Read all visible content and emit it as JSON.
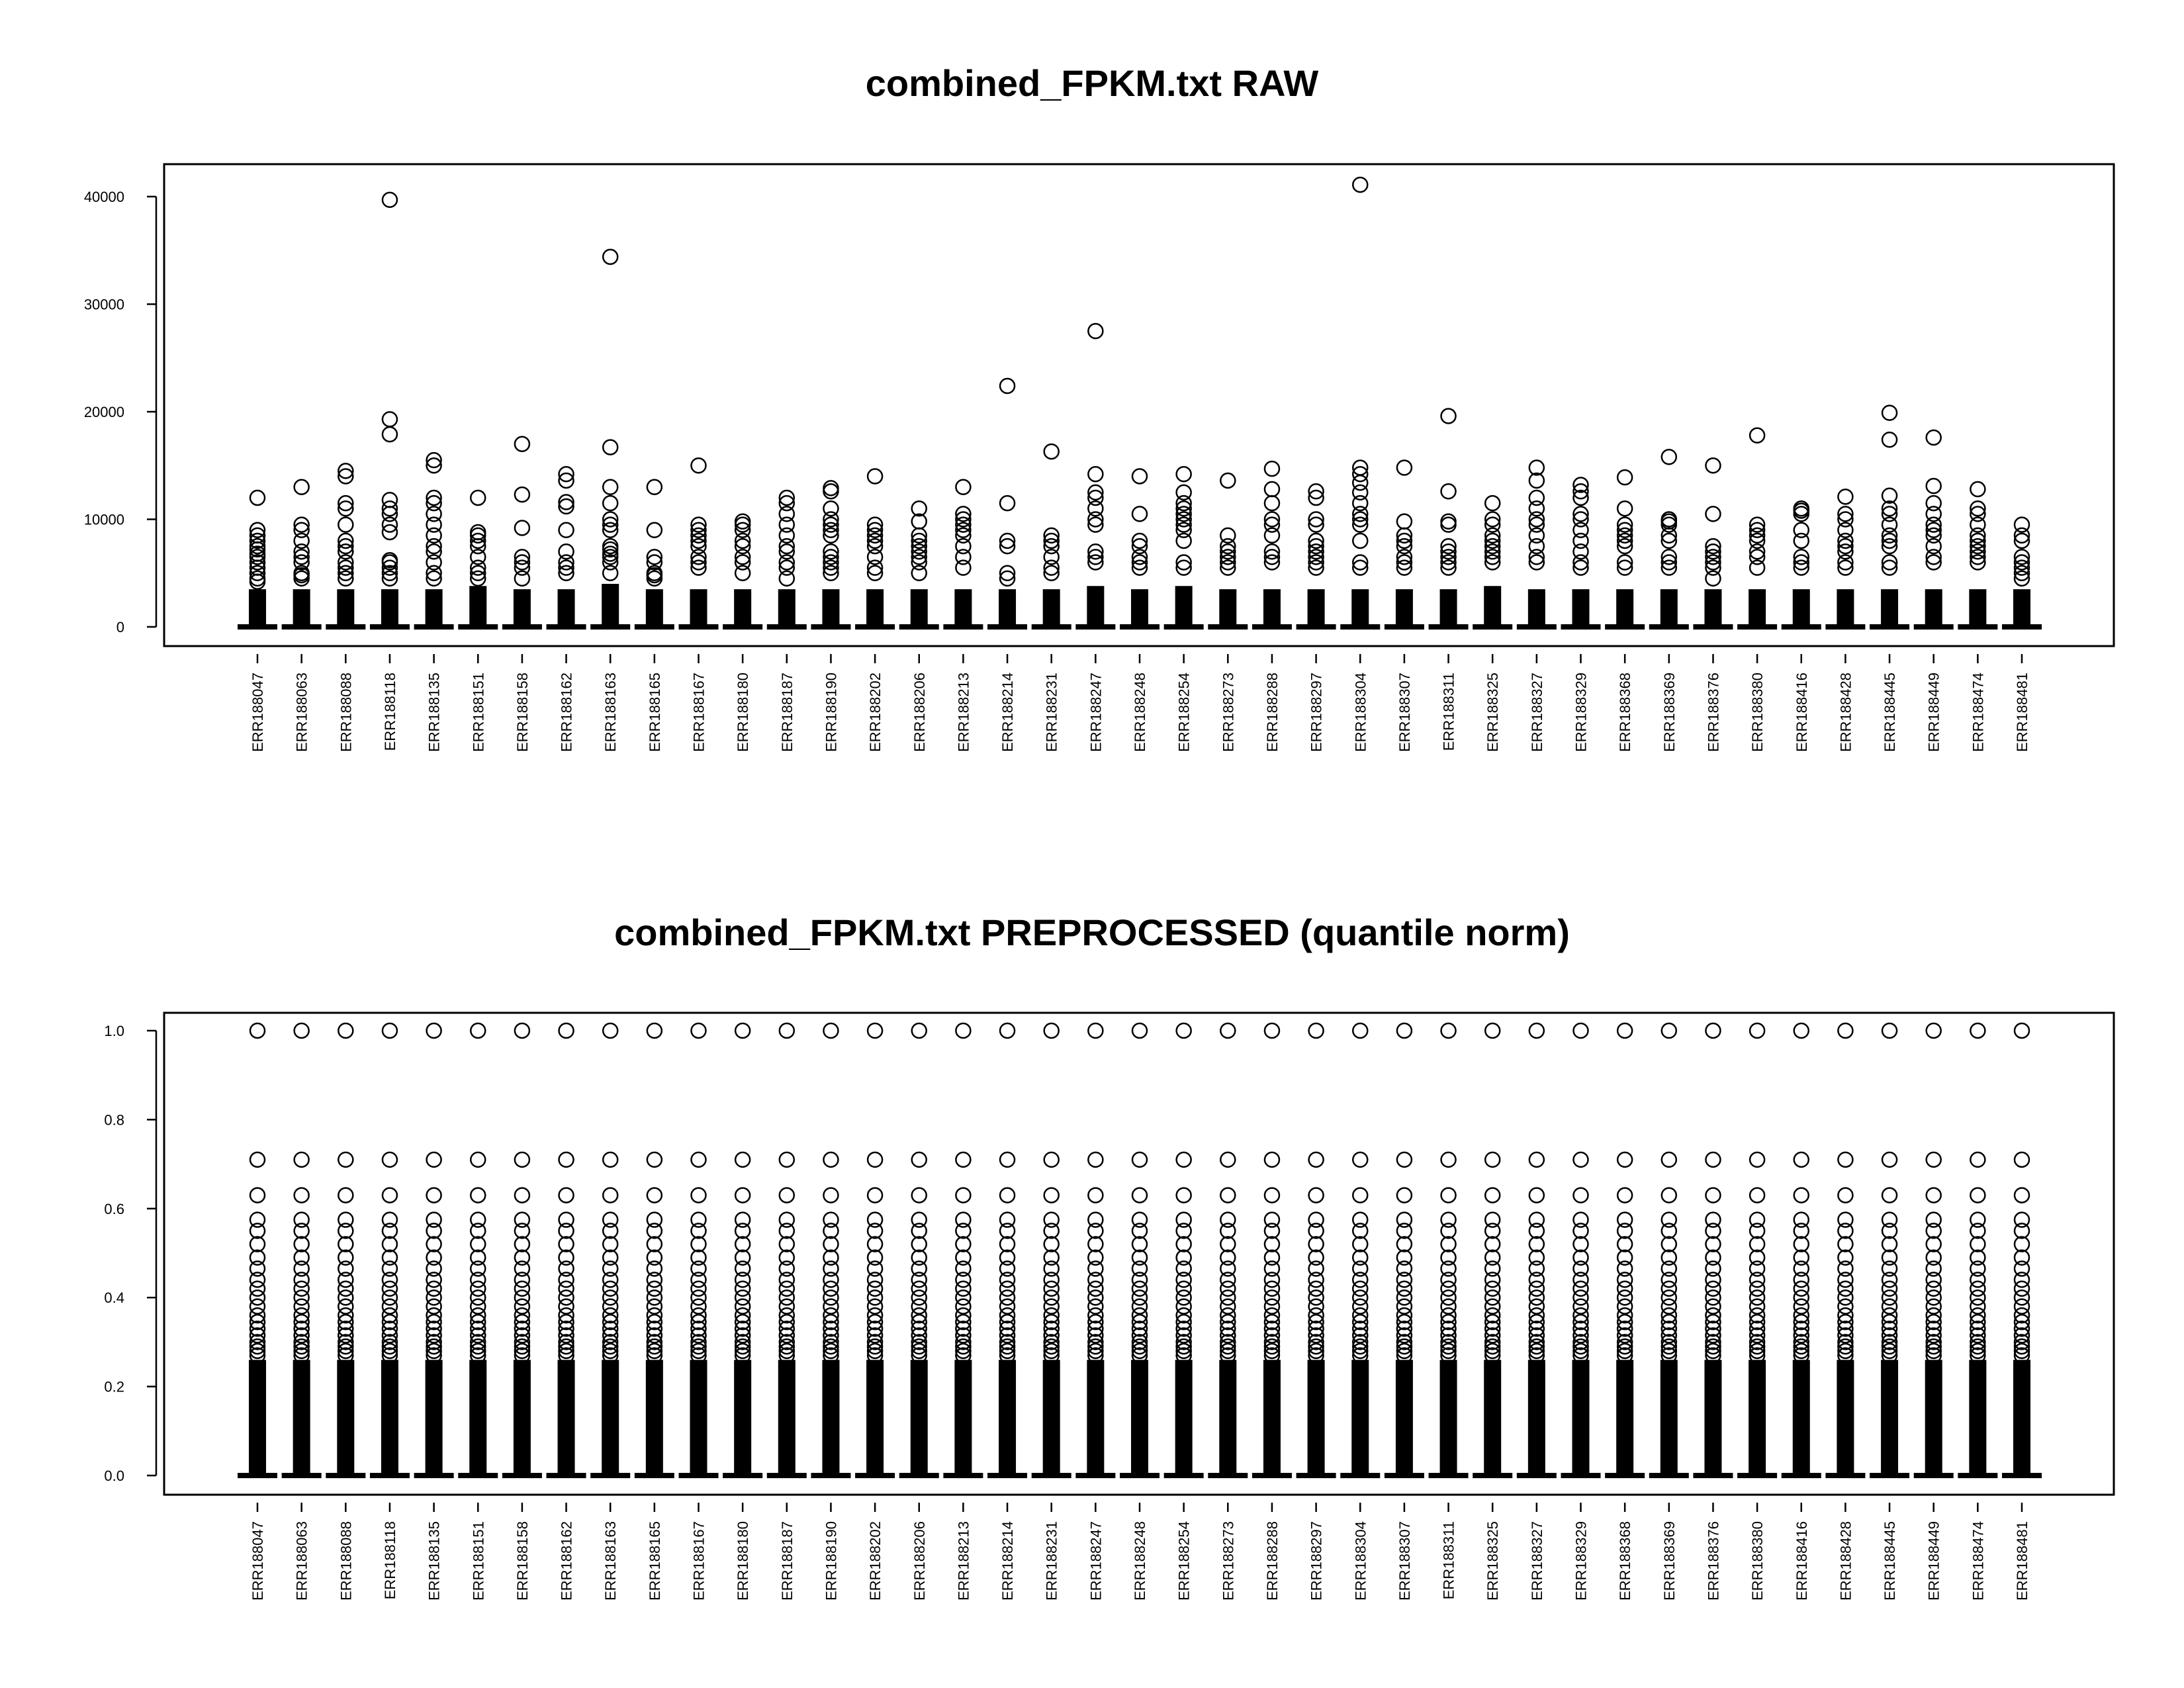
{
  "chart_data": [
    {
      "type": "boxplot",
      "title": "combined_FPKM.txt RAW",
      "xlabel": "",
      "ylabel": "",
      "ylim": [
        0,
        41000
      ],
      "yticks": [
        "0",
        "10000",
        "20000",
        "30000",
        "40000"
      ],
      "categories": [
        "ERR188047",
        "ERR188063",
        "ERR188088",
        "ERR188118",
        "ERR188135",
        "ERR188151",
        "ERR188158",
        "ERR188162",
        "ERR188163",
        "ERR188165",
        "ERR188167",
        "ERR188180",
        "ERR188187",
        "ERR188190",
        "ERR188202",
        "ERR188206",
        "ERR188213",
        "ERR188214",
        "ERR188231",
        "ERR188247",
        "ERR188248",
        "ERR188254",
        "ERR188273",
        "ERR188288",
        "ERR188297",
        "ERR188304",
        "ERR188307",
        "ERR188311",
        "ERR188325",
        "ERR188327",
        "ERR188329",
        "ERR188368",
        "ERR188369",
        "ERR188376",
        "ERR188380",
        "ERR188416",
        "ERR188428",
        "ERR188445",
        "ERR188449",
        "ERR188474",
        "ERR188481"
      ],
      "median": 0,
      "dense_top": [
        3500,
        3500,
        3500,
        3500,
        3500,
        3800,
        3500,
        3500,
        4000,
        3500,
        3500,
        3500,
        3500,
        3500,
        3500,
        3500,
        3500,
        3500,
        3500,
        3800,
        3500,
        3800,
        3500,
        3500,
        3500,
        3500,
        3500,
        3500,
        3800,
        3500,
        3500,
        3500,
        3500,
        3500,
        3500,
        3500,
        3500,
        3500,
        3500,
        3500,
        3500
      ],
      "outliers": [
        [
          12000,
          9000,
          8500,
          8000,
          7500,
          7200,
          6800,
          6500,
          6000,
          5500,
          5000,
          4500,
          4200
        ],
        [
          13000,
          9500,
          9000,
          8000,
          7000,
          6500,
          6000,
          5000,
          4800,
          4500
        ],
        [
          14500,
          14000,
          11500,
          11000,
          9500,
          8000,
          7500,
          7000,
          6000,
          5500,
          5000,
          4500
        ],
        [
          39700,
          19300,
          17900,
          11800,
          11000,
          10500,
          9500,
          8800,
          6200,
          6000,
          5500,
          5000,
          4500
        ],
        [
          15500,
          15000,
          12000,
          11500,
          10500,
          9500,
          8500,
          7500,
          7000,
          6000,
          5000,
          4500
        ],
        [
          12000,
          8800,
          8500,
          8000,
          7500,
          6500,
          5500,
          5000,
          4500
        ],
        [
          17000,
          12300,
          9200,
          6500,
          6000,
          5500,
          4500
        ],
        [
          14200,
          13600,
          11600,
          11200,
          9000,
          7000,
          6000,
          5500,
          5000
        ],
        [
          34400,
          16700,
          13000,
          11500,
          10000,
          9500,
          9000,
          7500,
          7200,
          6800,
          6500,
          6000,
          5000
        ],
        [
          13000,
          9000,
          6500,
          6000,
          5000,
          4800,
          4500
        ],
        [
          15000,
          9500,
          9000,
          8500,
          8000,
          7500,
          6500,
          6000,
          5500
        ],
        [
          9800,
          9500,
          9000,
          8000,
          7500,
          6500,
          6000,
          5000
        ],
        [
          12000,
          11500,
          10500,
          9500,
          8500,
          7500,
          7000,
          6000,
          5500,
          4500
        ],
        [
          12900,
          12600,
          11000,
          10000,
          9500,
          9000,
          8500,
          7000,
          6500,
          6000,
          5500,
          5000
        ],
        [
          14000,
          9500,
          9000,
          8500,
          8000,
          7500,
          6500,
          5500,
          5000
        ],
        [
          11000,
          9800,
          8500,
          8000,
          7500,
          7000,
          6500,
          6000,
          5000
        ],
        [
          13000,
          10500,
          10000,
          9500,
          9000,
          8500,
          7500,
          6500,
          5500
        ],
        [
          22400,
          11500,
          8000,
          7500,
          5000,
          4500
        ],
        [
          16300,
          8500,
          8000,
          7500,
          6500,
          5500,
          5000
        ],
        [
          27500,
          14200,
          12500,
          12000,
          11000,
          10000,
          9500,
          7000,
          6500,
          6000
        ],
        [
          14000,
          10500,
          8000,
          7500,
          6500,
          6000,
          5500
        ],
        [
          14200,
          12500,
          11500,
          11000,
          10500,
          10000,
          9500,
          9000,
          8000,
          6000,
          5500
        ],
        [
          13600,
          8500,
          7500,
          7000,
          6500,
          6000,
          5500
        ],
        [
          14700,
          12800,
          11500,
          10000,
          9500,
          8500,
          7000,
          6500,
          6000
        ],
        [
          12600,
          12000,
          10000,
          9500,
          8000,
          7500,
          7000,
          6500,
          6000,
          5500
        ],
        [
          41100,
          14800,
          14200,
          13400,
          12500,
          11500,
          10500,
          10000,
          9500,
          8000,
          6000,
          5500
        ],
        [
          14800,
          9800,
          8500,
          8000,
          7500,
          6500,
          6000,
          5500
        ],
        [
          19600,
          12600,
          9800,
          9500,
          7500,
          7000,
          6500,
          6000,
          5500
        ],
        [
          11500,
          10000,
          9500,
          8500,
          8000,
          7500,
          7000,
          6500,
          6000
        ],
        [
          14800,
          13600,
          12000,
          11000,
          10000,
          9500,
          8500,
          7500,
          6500,
          6000
        ],
        [
          13200,
          12600,
          12000,
          10500,
          10000,
          9000,
          8000,
          7000,
          6000,
          5500
        ],
        [
          13900,
          11000,
          9500,
          9000,
          8500,
          8000,
          7500,
          6000,
          5500
        ],
        [
          15800,
          10000,
          9800,
          9500,
          8500,
          8000,
          6500,
          6000,
          5500
        ],
        [
          15000,
          10500,
          7500,
          7000,
          6500,
          6000,
          5500,
          4500
        ],
        [
          17800,
          9500,
          9000,
          8500,
          8000,
          7000,
          6500,
          5500
        ],
        [
          11000,
          10800,
          10500,
          9000,
          8000,
          6500,
          6000,
          5500
        ],
        [
          12100,
          10500,
          10000,
          9000,
          8000,
          7500,
          7000,
          6000,
          5500
        ],
        [
          19900,
          17400,
          12200,
          11000,
          10500,
          9500,
          8500,
          8000,
          7500,
          6000,
          5500
        ],
        [
          17600,
          13100,
          11500,
          10500,
          9500,
          9000,
          8500,
          7500,
          6500,
          6000
        ],
        [
          12800,
          11000,
          10500,
          9500,
          8500,
          8000,
          7500,
          7000,
          6500,
          6000
        ],
        [
          9500,
          8500,
          8000,
          6500,
          6000,
          5500,
          5000,
          4500
        ]
      ]
    },
    {
      "type": "boxplot",
      "title": "combined_FPKM.txt PREPROCESSED (quantile norm)",
      "xlabel": "",
      "ylabel": "",
      "ylim": [
        0,
        1.0
      ],
      "yticks": [
        "0.0",
        "0.2",
        "0.4",
        "0.6",
        "0.8",
        "1.0"
      ],
      "categories": [
        "ERR188047",
        "ERR188063",
        "ERR188088",
        "ERR188118",
        "ERR188135",
        "ERR188151",
        "ERR188158",
        "ERR188162",
        "ERR188163",
        "ERR188165",
        "ERR188167",
        "ERR188180",
        "ERR188187",
        "ERR188190",
        "ERR188202",
        "ERR188206",
        "ERR188213",
        "ERR188214",
        "ERR188231",
        "ERR188247",
        "ERR188248",
        "ERR188254",
        "ERR188273",
        "ERR188288",
        "ERR188297",
        "ERR188304",
        "ERR188307",
        "ERR188311",
        "ERR188325",
        "ERR188327",
        "ERR188329",
        "ERR188368",
        "ERR188369",
        "ERR188376",
        "ERR188380",
        "ERR188416",
        "ERR188428",
        "ERR188445",
        "ERR188449",
        "ERR188474",
        "ERR188481"
      ],
      "median": 0.0,
      "dense_top": 0.26,
      "outliers_common": [
        1.0,
        0.71,
        0.63,
        0.575,
        0.55,
        0.52,
        0.49,
        0.465,
        0.44,
        0.42,
        0.4,
        0.38,
        0.36,
        0.345,
        0.33,
        0.315,
        0.3,
        0.29,
        0.28,
        0.27
      ]
    }
  ]
}
